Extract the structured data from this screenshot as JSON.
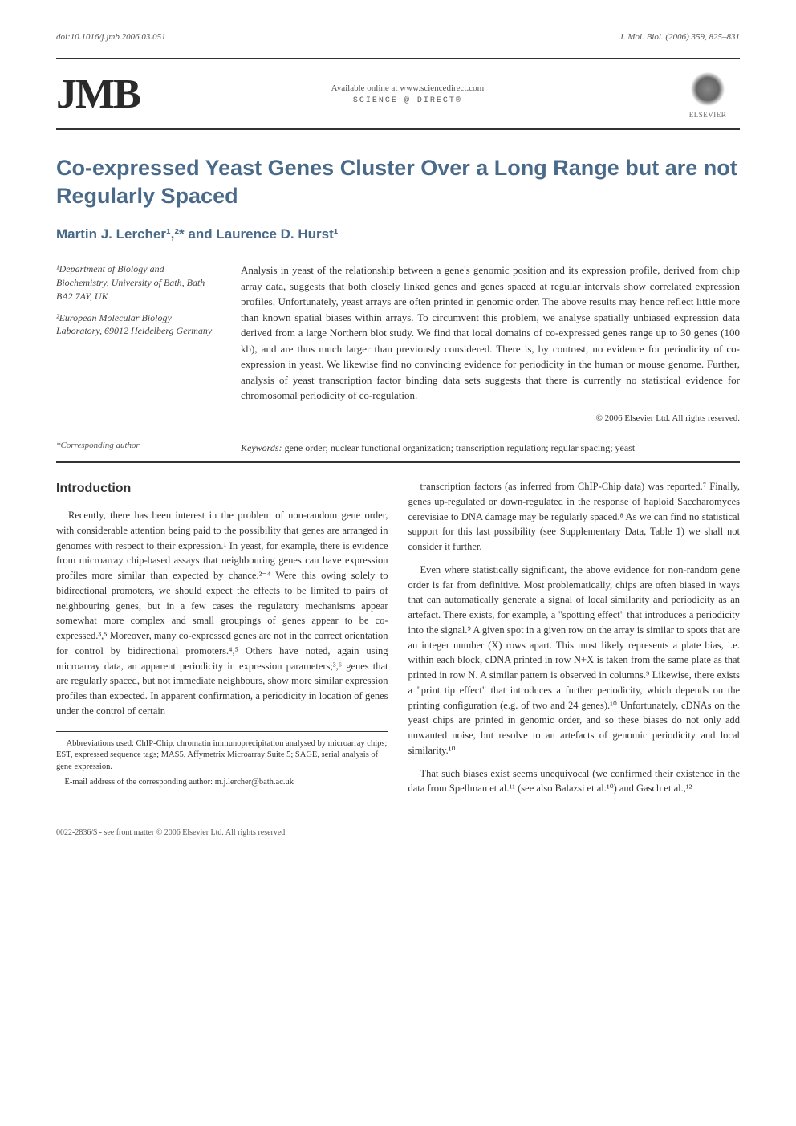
{
  "doi": "doi:10.1016/j.jmb.2006.03.051",
  "citation": "J. Mol. Biol. (2006) 359, 825–831",
  "logo_text": "JMB",
  "sciencedirect": {
    "line1": "Available online at www.sciencedirect.com",
    "line2": "SCIENCE @ DIRECT®"
  },
  "publisher": "ELSEVIER",
  "title": "Co-expressed Yeast Genes Cluster Over a Long Range but are not Regularly Spaced",
  "authors": "Martin J. Lercher¹,²* and Laurence D. Hurst¹",
  "affiliations": [
    "¹Department of Biology and Biochemistry, University of Bath, Bath BA2 7AY, UK",
    "²European Molecular Biology Laboratory, 69012 Heidelberg Germany"
  ],
  "abstract": "Analysis in yeast of the relationship between a gene's genomic position and its expression profile, derived from chip array data, suggests that both closely linked genes and genes spaced at regular intervals show correlated expression profiles. Unfortunately, yeast arrays are often printed in genomic order. The above results may hence reflect little more than known spatial biases within arrays. To circumvent this problem, we analyse spatially unbiased expression data derived from a large Northern blot study. We find that local domains of co-expressed genes range up to 30 genes (100 kb), and are thus much larger than previously considered. There is, by contrast, no evidence for periodicity of co-expression in yeast. We likewise find no convincing evidence for periodicity in the human or mouse genome. Further, analysis of yeast transcription factor binding data sets suggests that there is currently no statistical evidence for chromosomal periodicity of co-regulation.",
  "copyright": "© 2006 Elsevier Ltd. All rights reserved.",
  "keywords_label": "Keywords:",
  "keywords": "gene order; nuclear functional organization; transcription regulation; regular spacing; yeast",
  "corresponding": "*Corresponding author",
  "intro_heading": "Introduction",
  "col1": {
    "p1": "Recently, there has been interest in the problem of non-random gene order, with considerable attention being paid to the possibility that genes are arranged in genomes with respect to their expression.¹ In yeast, for example, there is evidence from microarray chip-based assays that neighbouring genes can have expression profiles more similar than expected by chance.²⁻⁴ Were this owing solely to bidirectional promoters, we should expect the effects to be limited to pairs of neighbouring genes, but in a few cases the regulatory mechanisms appear somewhat more complex and small groupings of genes appear to be co-expressed.³,⁵ Moreover, many co-expressed genes are not in the correct orientation for control by bidirectional promoters.⁴,⁵ Others have noted, again using microarray data, an apparent periodicity in expression parameters;³,⁶ genes that are regularly spaced, but not immediate neighbours, show more similar expression profiles than expected. In apparent confirmation, a periodicity in location of genes under the control of certain",
    "fn1": "Abbreviations used: ChIP-Chip, chromatin immunoprecipitation analysed by microarray chips; EST, expressed sequence tags; MAS5, Affymetrix Microarray Suite 5; SAGE, serial analysis of gene expression.",
    "fn2": "E-mail address of the corresponding author: m.j.lercher@bath.ac.uk"
  },
  "col2": {
    "p1": "transcription factors (as inferred from ChIP-Chip data) was reported.⁷ Finally, genes up-regulated or down-regulated in the response of haploid Saccharomyces cerevisiae to DNA damage may be regularly spaced.⁸ As we can find no statistical support for this last possibility (see Supplementary Data, Table 1) we shall not consider it further.",
    "p2": "Even where statistically significant, the above evidence for non-random gene order is far from definitive. Most problematically, chips are often biased in ways that can automatically generate a signal of local similarity and periodicity as an artefact. There exists, for example, a \"spotting effect\" that introduces a periodicity into the signal.⁹ A given spot in a given row on the array is similar to spots that are an integer number (X) rows apart. This most likely represents a plate bias, i.e. within each block, cDNA printed in row N+X is taken from the same plate as that printed in row N. A similar pattern is observed in columns.⁹ Likewise, there exists a \"print tip effect\" that introduces a further periodicity, which depends on the printing configuration (e.g. of two and 24 genes).¹⁰ Unfortunately, cDNAs on the yeast chips are printed in genomic order, and so these biases do not only add unwanted noise, but resolve to an artefacts of genomic periodicity and local similarity.¹⁰",
    "p3": "That such biases exist seems unequivocal (we confirmed their existence in the data from Spellman et al.¹¹ (see also Balazsi et al.¹⁰) and Gasch et al.,¹²"
  },
  "footer": "0022-2836/$ - see front matter © 2006 Elsevier Ltd. All rights reserved.",
  "colors": {
    "heading_blue": "#4a6a8a",
    "text": "#333333",
    "rule": "#333333"
  }
}
